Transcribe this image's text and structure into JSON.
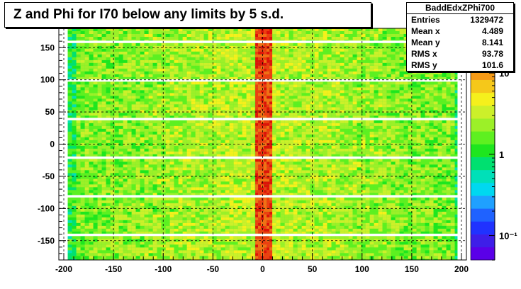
{
  "chart_data": {
    "type": "heatmap",
    "title": "Z and Phi for I70 below any limits by 5 s.d.",
    "xlabel": "",
    "ylabel": "",
    "xlim": [
      -205,
      205
    ],
    "ylim": [
      -180,
      180
    ],
    "x_ticks": [
      -200,
      -150,
      -100,
      -50,
      0,
      50,
      100,
      150,
      200
    ],
    "y_ticks": [
      -150,
      -100,
      -50,
      0,
      50,
      100,
      150
    ],
    "x_tick_labels": [
      "-200",
      "-150",
      "-100",
      "-50",
      "0",
      "50",
      "100",
      "150",
      "200"
    ],
    "y_tick_labels": [
      "-150",
      "-100",
      "-50",
      "0",
      "50",
      "100",
      "150"
    ],
    "grid": true,
    "color_scale": "log",
    "color_ticks": [
      "10",
      "1",
      "10⁻¹"
    ],
    "data_x_range": [
      -196,
      196
    ],
    "bands": [
      {
        "y": [
          -180,
          -143
        ]
      },
      {
        "y": [
          -139,
          -83
        ]
      },
      {
        "y": [
          -79,
          -23
        ]
      },
      {
        "y": [
          -19,
          37
        ]
      },
      {
        "y": [
          41,
          97
        ]
      },
      {
        "y": [
          101,
          157
        ]
      },
      {
        "y": [
          161,
          180
        ]
      }
    ],
    "hot_stripe_x": [
      -6,
      6
    ],
    "colors": {
      "background_fill": "#3af03a",
      "hot_stripe": "#ee1a10",
      "palette": [
        "#5a00e8",
        "#3e1ee8",
        "#2032ff",
        "#1f62ff",
        "#1fa0ff",
        "#00d8f0",
        "#00e0b8",
        "#00e070",
        "#1ee61e",
        "#5ef020",
        "#9cf028",
        "#ccf02a",
        "#f5f01c",
        "#f5c81a",
        "#f59a16",
        "#f56e14",
        "#f03c10",
        "#e01008"
      ]
    }
  },
  "stats": {
    "name": "BaddEdxZPhi700",
    "entries_label": "Entries",
    "entries": "1329472",
    "meanx_label": "Mean x",
    "meanx": "4.489",
    "meany_label": "Mean y",
    "meany": "8.141",
    "rmsx_label": "RMS x",
    "rmsx": "93.78",
    "rmsy_label": "RMS y",
    "rmsy": "101.6"
  }
}
